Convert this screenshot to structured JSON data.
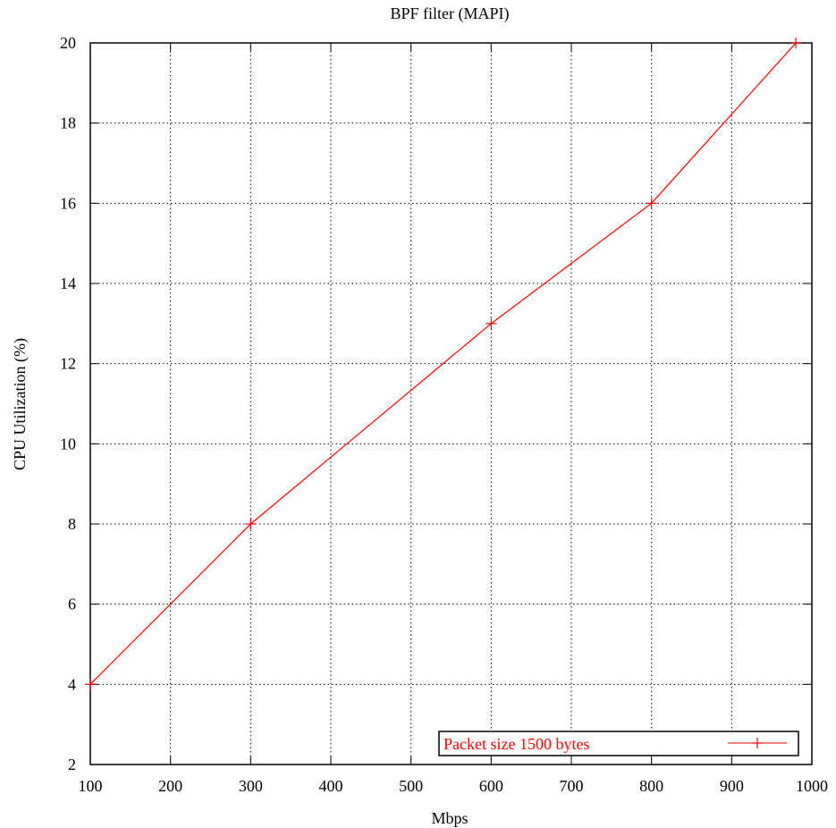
{
  "chart_data": {
    "type": "line",
    "title": "BPF filter (MAPI)",
    "xlabel": "Mbps",
    "ylabel": "CPU Utilization (%)",
    "xlim": [
      100,
      1000
    ],
    "ylim": [
      2,
      20
    ],
    "xticks": [
      "100",
      "200",
      "300",
      "400",
      "500",
      "600",
      "700",
      "800",
      "900",
      "1000"
    ],
    "yticks": [
      "2",
      "4",
      "6",
      "8",
      "10",
      "12",
      "14",
      "16",
      "18",
      "20"
    ],
    "grid": true,
    "legend_position": "bottom-right",
    "series": [
      {
        "name": "Packet size 1500 bytes",
        "color": "#ff0000",
        "marker": "plus",
        "x": [
          100,
          300,
          600,
          800,
          980
        ],
        "y": [
          4,
          8,
          13,
          16,
          20
        ]
      }
    ]
  }
}
